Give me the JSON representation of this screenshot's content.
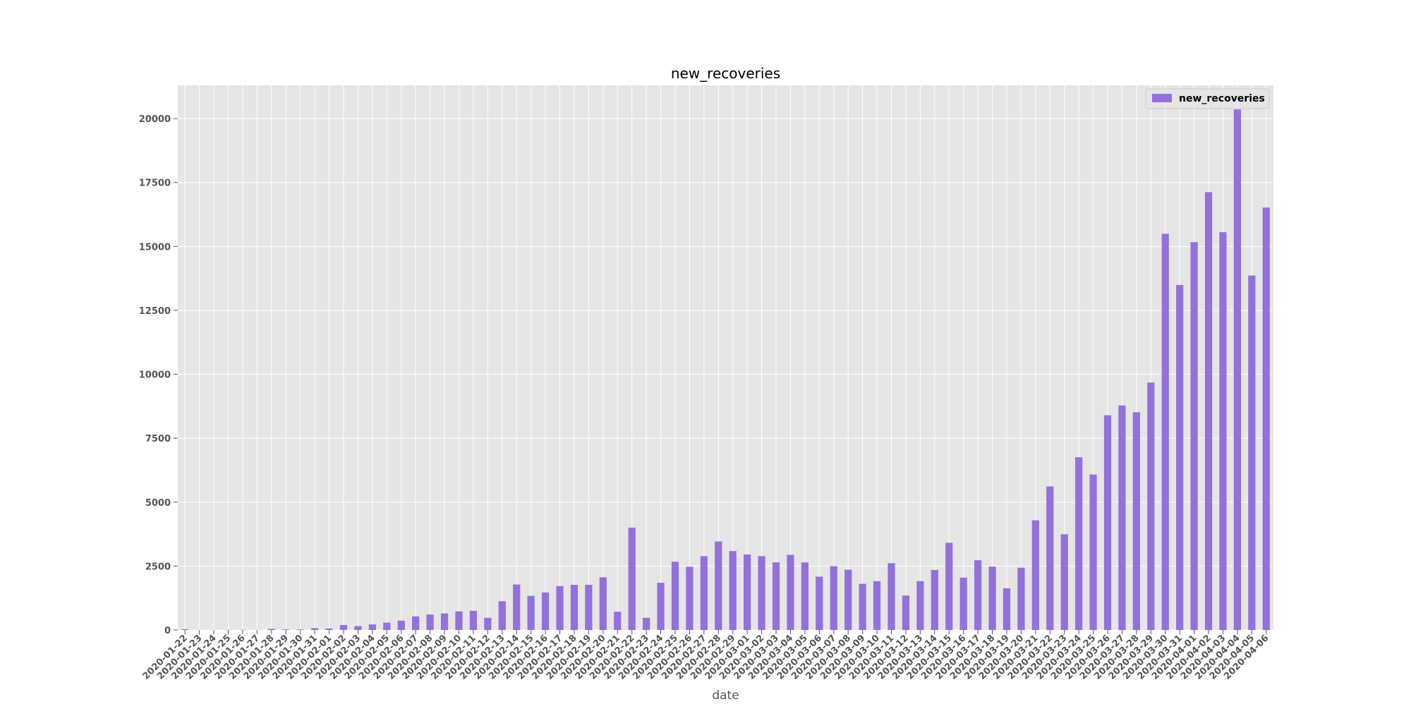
{
  "chart_data": {
    "type": "bar",
    "title": "new_recoveries",
    "xlabel": "date",
    "ylabel": "",
    "ylim": [
      0,
      21300
    ],
    "yticks": [
      0,
      2500,
      5000,
      7500,
      10000,
      12500,
      15000,
      17500,
      20000
    ],
    "grid": true,
    "legend_position": "top-right",
    "colors": {
      "bar": "#9370DB",
      "plot_bg": "#E5E5E5",
      "grid": "#FFFFFF"
    },
    "categories": [
      "2020-01-22",
      "2020-01-23",
      "2020-01-24",
      "2020-01-25",
      "2020-01-26",
      "2020-01-27",
      "2020-01-28",
      "2020-01-29",
      "2020-01-30",
      "2020-01-31",
      "2020-02-01",
      "2020-02-02",
      "2020-02-03",
      "2020-02-04",
      "2020-02-05",
      "2020-02-06",
      "2020-02-07",
      "2020-02-08",
      "2020-02-09",
      "2020-02-10",
      "2020-02-11",
      "2020-02-12",
      "2020-02-13",
      "2020-02-14",
      "2020-02-15",
      "2020-02-16",
      "2020-02-17",
      "2020-02-18",
      "2020-02-19",
      "2020-02-20",
      "2020-02-21",
      "2020-02-22",
      "2020-02-23",
      "2020-02-24",
      "2020-02-25",
      "2020-02-26",
      "2020-02-27",
      "2020-02-28",
      "2020-02-29",
      "2020-03-01",
      "2020-03-02",
      "2020-03-03",
      "2020-03-04",
      "2020-03-05",
      "2020-03-06",
      "2020-03-07",
      "2020-03-08",
      "2020-03-09",
      "2020-03-10",
      "2020-03-11",
      "2020-03-12",
      "2020-03-13",
      "2020-03-14",
      "2020-03-15",
      "2020-03-16",
      "2020-03-17",
      "2020-03-18",
      "2020-03-19",
      "2020-03-20",
      "2020-03-21",
      "2020-03-22",
      "2020-03-23",
      "2020-03-24",
      "2020-03-25",
      "2020-03-26",
      "2020-03-27",
      "2020-03-28",
      "2020-03-29",
      "2020-03-30",
      "2020-03-31",
      "2020-04-01",
      "2020-04-02",
      "2020-04-03",
      "2020-04-04",
      "2020-04-05",
      "2020-04-06"
    ],
    "series": [
      {
        "name": "new_recoveries",
        "values": [
          28,
          2,
          3,
          7,
          9,
          3,
          43,
          21,
          21,
          69,
          57,
          194,
          152,
          219,
          286,
          363,
          531,
          604,
          646,
          727,
          749,
          476,
          1126,
          1779,
          1336,
          1467,
          1717,
          1766,
          1767,
          2062,
          714,
          4003,
          477,
          1846,
          2668,
          2473,
          2888,
          3462,
          3087,
          2954,
          2887,
          2643,
          2938,
          2643,
          2087,
          2496,
          2357,
          1805,
          1909,
          2614,
          1348,
          1911,
          2349,
          3410,
          2047,
          2728,
          2481,
          1630,
          2434,
          4289,
          5615,
          3745,
          6756,
          6080,
          8399,
          8780,
          8514,
          9677,
          15495,
          13493,
          15168,
          17125,
          15558,
          20359,
          13862,
          16522
        ]
      }
    ]
  }
}
